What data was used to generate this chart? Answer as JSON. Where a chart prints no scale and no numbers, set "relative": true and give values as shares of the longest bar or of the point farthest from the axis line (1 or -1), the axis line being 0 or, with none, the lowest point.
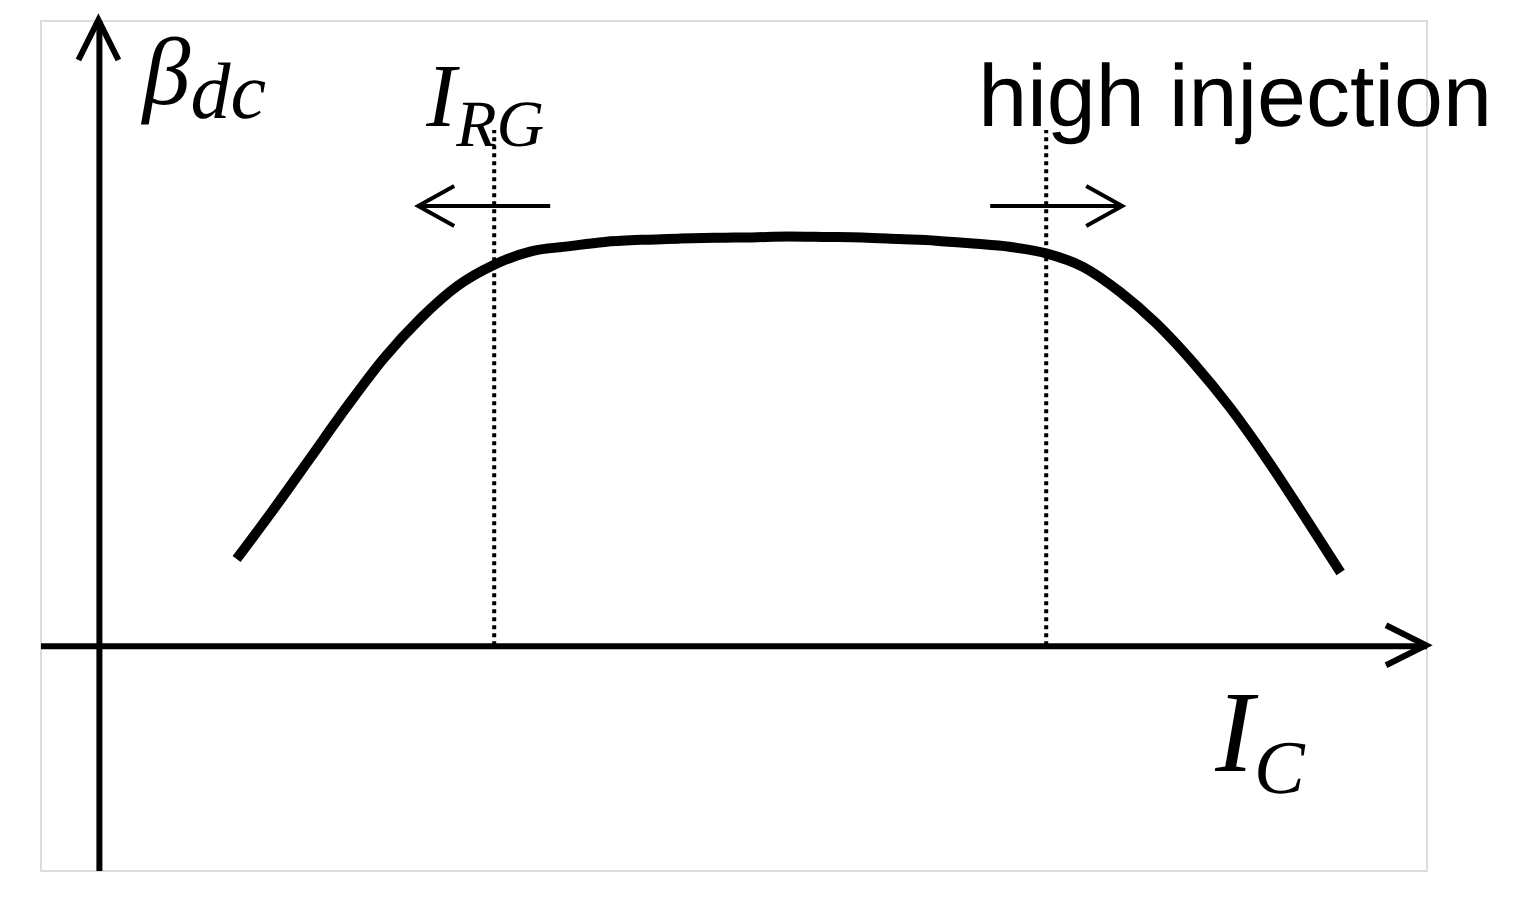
{
  "chart_data": {
    "type": "line",
    "relative": true,
    "xlabel": "I$_{C}$",
    "ylabel": "β$_{dc}$",
    "categories": [
      null,
      null,
      null,
      null,
      null,
      null,
      null,
      null,
      null,
      null,
      null,
      null,
      null,
      null,
      null,
      null,
      null,
      null,
      null,
      null,
      null,
      null,
      null,
      null,
      null,
      null,
      null,
      null,
      null,
      null,
      null
    ],
    "series": [
      {
        "color": "#000000",
        "values": [
          0.211,
          0.332,
          0.458,
          0.584,
          0.702,
          0.8,
          0.879,
          0.931,
          0.964,
          0.976,
          0.987,
          0.992,
          0.995,
          0.997,
          0.998,
          1.0,
          0.999,
          0.998,
          0.994,
          0.99,
          0.983,
          0.975,
          0.959,
          0.926,
          0.865,
          0.787,
          0.691,
          0.581,
          0.455,
          0.318,
          0.178
        ]
      }
    ],
    "annotations": [
      "I$_{RG}$",
      "high injection"
    ]
  }
}
